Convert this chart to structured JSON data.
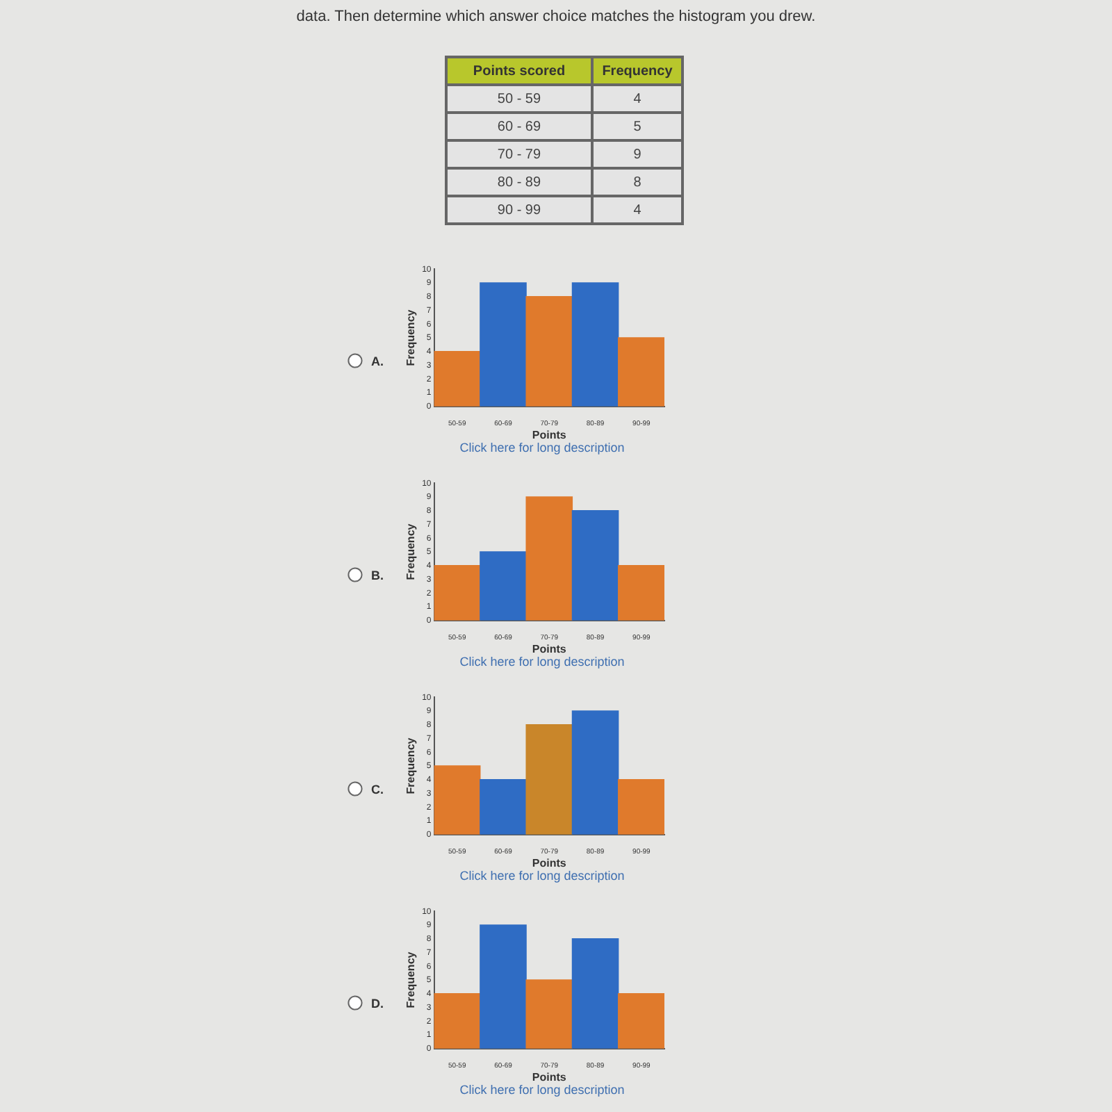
{
  "chart_data": [
    {
      "type": "other",
      "title": "data. Then determine which answer choice matches the histogram you drew.",
      "xlabel": "Points scored",
      "ylabel": "Frequency",
      "categories": [
        "50 - 59",
        "60 - 69",
        "70 - 79",
        "80 - 89",
        "90 - 99"
      ],
      "values": [
        4,
        5,
        9,
        8,
        4
      ],
      "data_labels": true
    },
    {
      "type": "bar",
      "title": "A.",
      "categories": [
        "50-59",
        "60-69",
        "70-79",
        "80-89",
        "90-99"
      ],
      "values": [
        4,
        9,
        8,
        9,
        5
      ],
      "colors": [
        "#e07a2c",
        "#2f6cc4",
        "#e07a2c",
        "#2f6cc4",
        "#e07a2c"
      ],
      "xlabel": "Points",
      "ylabel": "Frequency",
      "ylim": [
        0,
        10
      ],
      "yticks": [
        0,
        1,
        2,
        3,
        4,
        5,
        6,
        7,
        8,
        9,
        10
      ],
      "annotations": [
        "Click here for long description"
      ]
    },
    {
      "type": "bar",
      "title": "B.",
      "categories": [
        "50-59",
        "60-69",
        "70-79",
        "80-89",
        "90-99"
      ],
      "values": [
        4,
        5,
        9,
        8,
        4
      ],
      "colors": [
        "#e07a2c",
        "#2f6cc4",
        "#e07a2c",
        "#2f6cc4",
        "#e07a2c"
      ],
      "xlabel": "Points",
      "ylabel": "Frequency",
      "ylim": [
        0,
        10
      ],
      "yticks": [
        0,
        1,
        2,
        3,
        4,
        5,
        6,
        7,
        8,
        9,
        10
      ],
      "annotations": [
        "Click here for long description"
      ]
    },
    {
      "type": "bar",
      "title": "C.",
      "categories": [
        "50-59",
        "60-69",
        "70-79",
        "80-89",
        "90-99"
      ],
      "values": [
        5,
        4,
        8,
        9,
        4
      ],
      "colors": [
        "#e07a2c",
        "#2f6cc4",
        "#c9862a",
        "#2f6cc4",
        "#e07a2c"
      ],
      "xlabel": "Points",
      "ylabel": "Frequency",
      "ylim": [
        0,
        10
      ],
      "yticks": [
        0,
        1,
        2,
        3,
        4,
        5,
        6,
        7,
        8,
        9,
        10
      ],
      "annotations": [
        "Click here for long description"
      ]
    },
    {
      "type": "bar",
      "title": "D.",
      "categories": [
        "50-59",
        "60-69",
        "70-79",
        "80-89",
        "90-99"
      ],
      "values": [
        4,
        9,
        5,
        8,
        4
      ],
      "colors": [
        "#e07a2c",
        "#2f6cc4",
        "#e07a2c",
        "#2f6cc4",
        "#e07a2c"
      ],
      "xlabel": "Points",
      "ylabel": "Frequency",
      "ylim": [
        0,
        10
      ],
      "yticks": [
        0,
        1,
        2,
        3,
        4,
        5,
        6,
        7,
        8,
        9,
        10
      ],
      "annotations": [
        "Click here for long description"
      ]
    }
  ]
}
